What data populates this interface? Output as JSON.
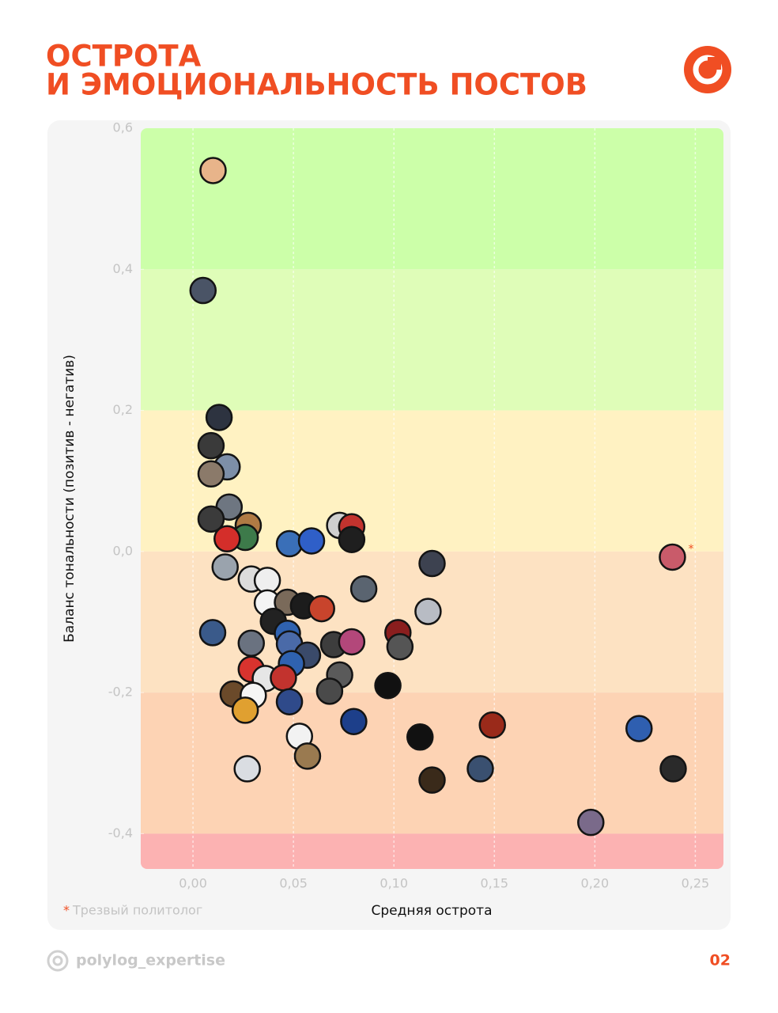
{
  "chart_data": {
    "type": "scatter",
    "title": [
      "ОСТРОТА",
      "И ЭМОЦИОНАЛЬНОСТЬ ПОСТОВ"
    ],
    "x_label": "Средняя острота",
    "y_label": "Баланс тональности (позитив - негатив)",
    "xlim": [
      -0.026,
      0.264
    ],
    "ylim": [
      -0.45,
      0.6
    ],
    "xticks": [
      {
        "value": 0,
        "label": "0,00"
      },
      {
        "value": 0.05,
        "label": "0,05"
      },
      {
        "value": 0.1,
        "label": "0,10"
      },
      {
        "value": 0.15,
        "label": "0,15"
      },
      {
        "value": 0.2,
        "label": "0,20"
      },
      {
        "value": 0.25,
        "label": "0,25"
      }
    ],
    "yticks": [
      {
        "value": 0.6,
        "label": "0,6"
      },
      {
        "value": 0.4,
        "label": "0,4"
      },
      {
        "value": 0.2,
        "label": "0,2"
      },
      {
        "value": 0,
        "label": "0,0"
      },
      {
        "value": -0.2,
        "label": "-0,2"
      },
      {
        "value": -0.4,
        "label": "-0,4"
      }
    ],
    "grid": true,
    "bands": [
      {
        "from": 0.4,
        "to": 0.6,
        "color": "#ccffa9"
      },
      {
        "from": 0.2,
        "to": 0.4,
        "color": "#dffdb8"
      },
      {
        "from": 0,
        "to": 0.2,
        "color": "#fff2c2"
      },
      {
        "from": -0.2,
        "to": 0,
        "color": "#fde2c2"
      },
      {
        "from": -0.4,
        "to": -0.2,
        "color": "#fdd3b4"
      },
      {
        "from": -0.45,
        "to": -0.4,
        "color": "#fcb2b2"
      }
    ],
    "series": [
      {
        "x": [
          0.01,
          0.005,
          0.013,
          0.009,
          0.017,
          0.009,
          0.018,
          0.009,
          0.0275,
          0.026,
          0.017,
          0.048,
          0.059,
          0.073,
          0.079,
          0.079,
          0.016,
          0.119,
          0.2386,
          0.029,
          0.037,
          0.085,
          0.037,
          0.047,
          0.055,
          0.064,
          0.117,
          0.04,
          0.0098,
          0.047,
          0.102,
          0.029,
          0.048,
          0.057,
          0.07,
          0.079,
          0.103,
          0.049,
          0.029,
          0.036,
          0.045,
          0.073,
          0.097,
          0.02,
          0.03,
          0.068,
          0.048,
          0.026,
          0.08,
          0.149,
          0.222,
          0.053,
          0.113,
          0.057,
          0.027,
          0.143,
          0.239,
          0.119,
          0.198
        ],
        "values": [
          0.54,
          0.37,
          0.19,
          0.15,
          0.12,
          0.11,
          0.063,
          0.046,
          0.037,
          0.02,
          0.018,
          0.011,
          0.015,
          0.037,
          0.035,
          0.017,
          -0.022,
          -0.017,
          -0.008,
          -0.039,
          -0.041,
          -0.053,
          -0.073,
          -0.072,
          -0.077,
          -0.081,
          -0.085,
          -0.099,
          -0.115,
          -0.116,
          -0.115,
          -0.13,
          -0.131,
          -0.147,
          -0.132,
          -0.128,
          -0.135,
          -0.159,
          -0.167,
          -0.18,
          -0.179,
          -0.175,
          -0.19,
          -0.202,
          -0.204,
          -0.198,
          -0.213,
          -0.225,
          -0.241,
          -0.246,
          -0.251,
          -0.262,
          -0.263,
          -0.29,
          -0.308,
          -0.308,
          -0.308,
          -0.324,
          -0.384
        ],
        "colors": [
          "#e8b48a",
          "#4a5466",
          "#2d3340",
          "#3a3a3a",
          "#7d8fa8",
          "#8b7a6a",
          "#6e7681",
          "#3b3b3b",
          "#b07a44",
          "#3d7a4a",
          "#d42e2a",
          "#3a6fb8",
          "#2f5fc8",
          "#cfcfcf",
          "#c2332e",
          "#1f1f1f",
          "#9aa3ad",
          "#3d4250",
          "#c95b6a",
          "#dcdcdc",
          "#efefef",
          "#5a6470",
          "#f4f4f4",
          "#7a6a5a",
          "#1c1c1c",
          "#c8442c",
          "#b8bcc4",
          "#222222",
          "#3a5a8a",
          "#2f62b0",
          "#8a1e1e",
          "#6a7280",
          "#4a6aa8",
          "#3a4a6a",
          "#3d3d3d",
          "#b3477a",
          "#555555",
          "#2f62b0",
          "#d8332e",
          "#e6e6e6",
          "#c2332e",
          "#5a5a5a",
          "#111111",
          "#6b4a2a",
          "#f5f5f5",
          "#4a4a4a",
          "#2f4a8a",
          "#e0a030",
          "#1d3f8a",
          "#9a2a1a",
          "#2f5fb0",
          "#f2f2f2",
          "#111111",
          "#9a7a50",
          "#dadde2",
          "#3a5070",
          "#2a2a2a",
          "#3a2a1a",
          "#7a6a8a"
        ]
      }
    ],
    "annotation": {
      "point": 18,
      "asterisk": "*",
      "text": "Трезвый политолог"
    }
  },
  "footer": {
    "handle": "polylog_expertise",
    "page": "02"
  }
}
